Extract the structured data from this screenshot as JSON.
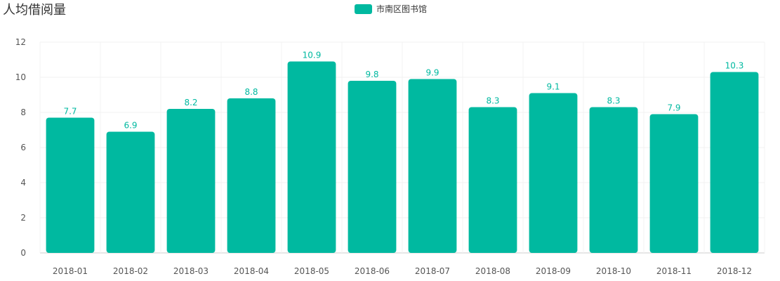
{
  "chart_data": {
    "type": "bar",
    "title": "人均借阅量",
    "categories": [
      "2018-01",
      "2018-02",
      "2018-03",
      "2018-04",
      "2018-05",
      "2018-06",
      "2018-07",
      "2018-08",
      "2018-09",
      "2018-10",
      "2018-11",
      "2018-12"
    ],
    "series": [
      {
        "name": "市南区图书馆",
        "values": [
          7.7,
          6.9,
          8.2,
          8.8,
          10.9,
          9.8,
          9.9,
          8.3,
          9.1,
          8.3,
          7.9,
          10.3
        ],
        "color": "#00b9a0"
      }
    ],
    "ylim": [
      0,
      12
    ],
    "yticks": [
      "0",
      "2",
      "4",
      "6",
      "8",
      "10",
      "12"
    ],
    "grid": true,
    "legend_position": "top-center",
    "xlabel": "",
    "ylabel": ""
  }
}
